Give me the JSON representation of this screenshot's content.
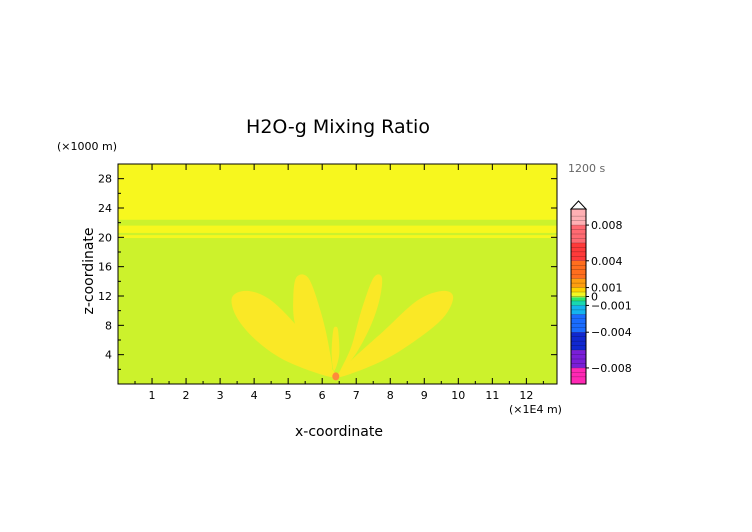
{
  "chart_data": {
    "type": "heatmap",
    "title": "H2O-g Mixing Ratio",
    "time_label": "1200 s",
    "xlabel": "x-coordinate",
    "ylabel": "z-coordinate",
    "x_unit": "(×1E4 m)",
    "y_unit": "(×1000 m)",
    "xlim": [
      0,
      12.9
    ],
    "ylim": [
      0,
      30
    ],
    "x_ticks": [
      1,
      2,
      3,
      4,
      5,
      6,
      7,
      8,
      9,
      10,
      11,
      12
    ],
    "y_ticks": [
      4,
      8,
      12,
      16,
      20,
      24,
      28
    ],
    "grid": false,
    "colors": {
      "background_field": "#ccf22c",
      "upper_layer": "#f7f71e",
      "plume": "#fae826",
      "source": "#ff8a3a"
    },
    "features": {
      "upper_layer_z": [
        22.4,
        30
      ],
      "bands_z": [
        [
          20.6,
          21.6
        ],
        [
          19.9,
          20.3
        ]
      ],
      "plume_lobes": [
        {
          "name": "left-lobe",
          "points": [
            [
              6.35,
              0.9
            ],
            [
              5.0,
              3.0
            ],
            [
              4.1,
              5.8
            ],
            [
              3.5,
              9.0
            ],
            [
              3.35,
              11.8
            ],
            [
              3.8,
              12.7
            ],
            [
              4.5,
              11.4
            ],
            [
              5.4,
              7.2
            ],
            [
              6.1,
              3.2
            ]
          ]
        },
        {
          "name": "mid-left-lobe",
          "points": [
            [
              6.25,
              1.4
            ],
            [
              5.55,
              4.2
            ],
            [
              5.2,
              8.2
            ],
            [
              5.15,
              11.8
            ],
            [
              5.25,
              14.6
            ],
            [
              5.6,
              14.4
            ],
            [
              5.95,
              10.0
            ],
            [
              6.2,
              5.0
            ]
          ]
        },
        {
          "name": "mid-right-lobe",
          "points": [
            [
              6.5,
              1.4
            ],
            [
              6.85,
              5.0
            ],
            [
              7.15,
              10.0
            ],
            [
              7.5,
              14.4
            ],
            [
              7.75,
              14.6
            ],
            [
              7.7,
              11.8
            ],
            [
              7.45,
              8.2
            ],
            [
              7.0,
              4.2
            ]
          ]
        },
        {
          "name": "right-lobe",
          "points": [
            [
              6.45,
              0.9
            ],
            [
              6.85,
              3.2
            ],
            [
              7.8,
              7.2
            ],
            [
              8.8,
              11.4
            ],
            [
              9.55,
              12.7
            ],
            [
              9.85,
              11.8
            ],
            [
              9.55,
              9.0
            ],
            [
              8.7,
              5.8
            ],
            [
              7.7,
              3.0
            ]
          ]
        },
        {
          "name": "center-lobe",
          "points": [
            [
              6.35,
              1.8
            ],
            [
              6.28,
              4.0
            ],
            [
              6.32,
              7.2
            ],
            [
              6.4,
              7.8
            ],
            [
              6.47,
              7.2
            ],
            [
              6.5,
              4.0
            ]
          ]
        }
      ],
      "source_point": [
        6.4,
        0.9
      ]
    },
    "colorbar": {
      "labels": [
        {
          "value": 0.008,
          "text": "0.008"
        },
        {
          "value": 0.004,
          "text": "0.004"
        },
        {
          "value": 0.001,
          "text": "0.001"
        },
        {
          "value": 0,
          "text": "0"
        },
        {
          "value": -0.001,
          "text": "-0.001"
        },
        {
          "value": -0.004,
          "text": "-0.004"
        },
        {
          "value": -0.008,
          "text": "-0.008"
        }
      ],
      "segments": [
        {
          "from": 0.008,
          "to": 0.0098,
          "color": "#ffb0b4"
        },
        {
          "from": 0.006,
          "to": 0.008,
          "color": "#ff6a72"
        },
        {
          "from": 0.004,
          "to": 0.006,
          "color": "#ff3a3a"
        },
        {
          "from": 0.002,
          "to": 0.004,
          "color": "#ff6e1e"
        },
        {
          "from": 0.001,
          "to": 0.002,
          "color": "#ff9e10"
        },
        {
          "from": 0.0005,
          "to": 0.001,
          "color": "#ffd400"
        },
        {
          "from": 0.0001,
          "to": 0.0005,
          "color": "#f7f71e"
        },
        {
          "from": -0.0001,
          "to": 0.0001,
          "color": "#ccf22c"
        },
        {
          "from": -0.0005,
          "to": -0.0001,
          "color": "#2ee86a"
        },
        {
          "from": -0.001,
          "to": -0.0005,
          "color": "#18d8b0"
        },
        {
          "from": -0.002,
          "to": -0.001,
          "color": "#14b4ee"
        },
        {
          "from": -0.004,
          "to": -0.002,
          "color": "#1a6cff"
        },
        {
          "from": -0.006,
          "to": -0.004,
          "color": "#1028d0"
        },
        {
          "from": -0.008,
          "to": -0.006,
          "color": "#7a1ed8"
        },
        {
          "from": -0.0098,
          "to": -0.008,
          "color": "#ff28b4"
        }
      ]
    }
  }
}
